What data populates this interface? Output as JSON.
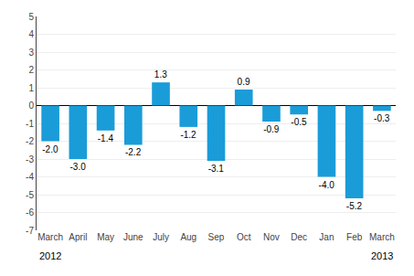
{
  "chart_data": {
    "type": "bar",
    "categories": [
      "March",
      "April",
      "May",
      "June",
      "July",
      "Aug",
      "Sep",
      "Oct",
      "Nov",
      "Dec",
      "Jan",
      "Feb",
      "March"
    ],
    "values": [
      -2.0,
      -3.0,
      -1.4,
      -2.2,
      1.3,
      -1.2,
      -3.1,
      0.9,
      -0.9,
      -0.5,
      -4.0,
      -5.2,
      -0.3
    ],
    "value_labels": [
      "-2.0",
      "-3.0",
      "-1.4",
      "-2.2",
      "1.3",
      "-1.2",
      "-3.1",
      "0.9",
      "-0.9",
      "-0.5",
      "-4.0",
      "-5.2",
      "-0.3"
    ],
    "color": "#1a9cd8",
    "ylim": [
      -7,
      5
    ],
    "yticks": [
      -7,
      -6,
      -5,
      -4,
      -3,
      -2,
      -1,
      0,
      1,
      2,
      3,
      4,
      5
    ],
    "grid": true,
    "data_labels": true,
    "annotations": [
      {
        "text": "2012",
        "x": 0
      },
      {
        "text": "2013",
        "x": 12
      }
    ]
  }
}
